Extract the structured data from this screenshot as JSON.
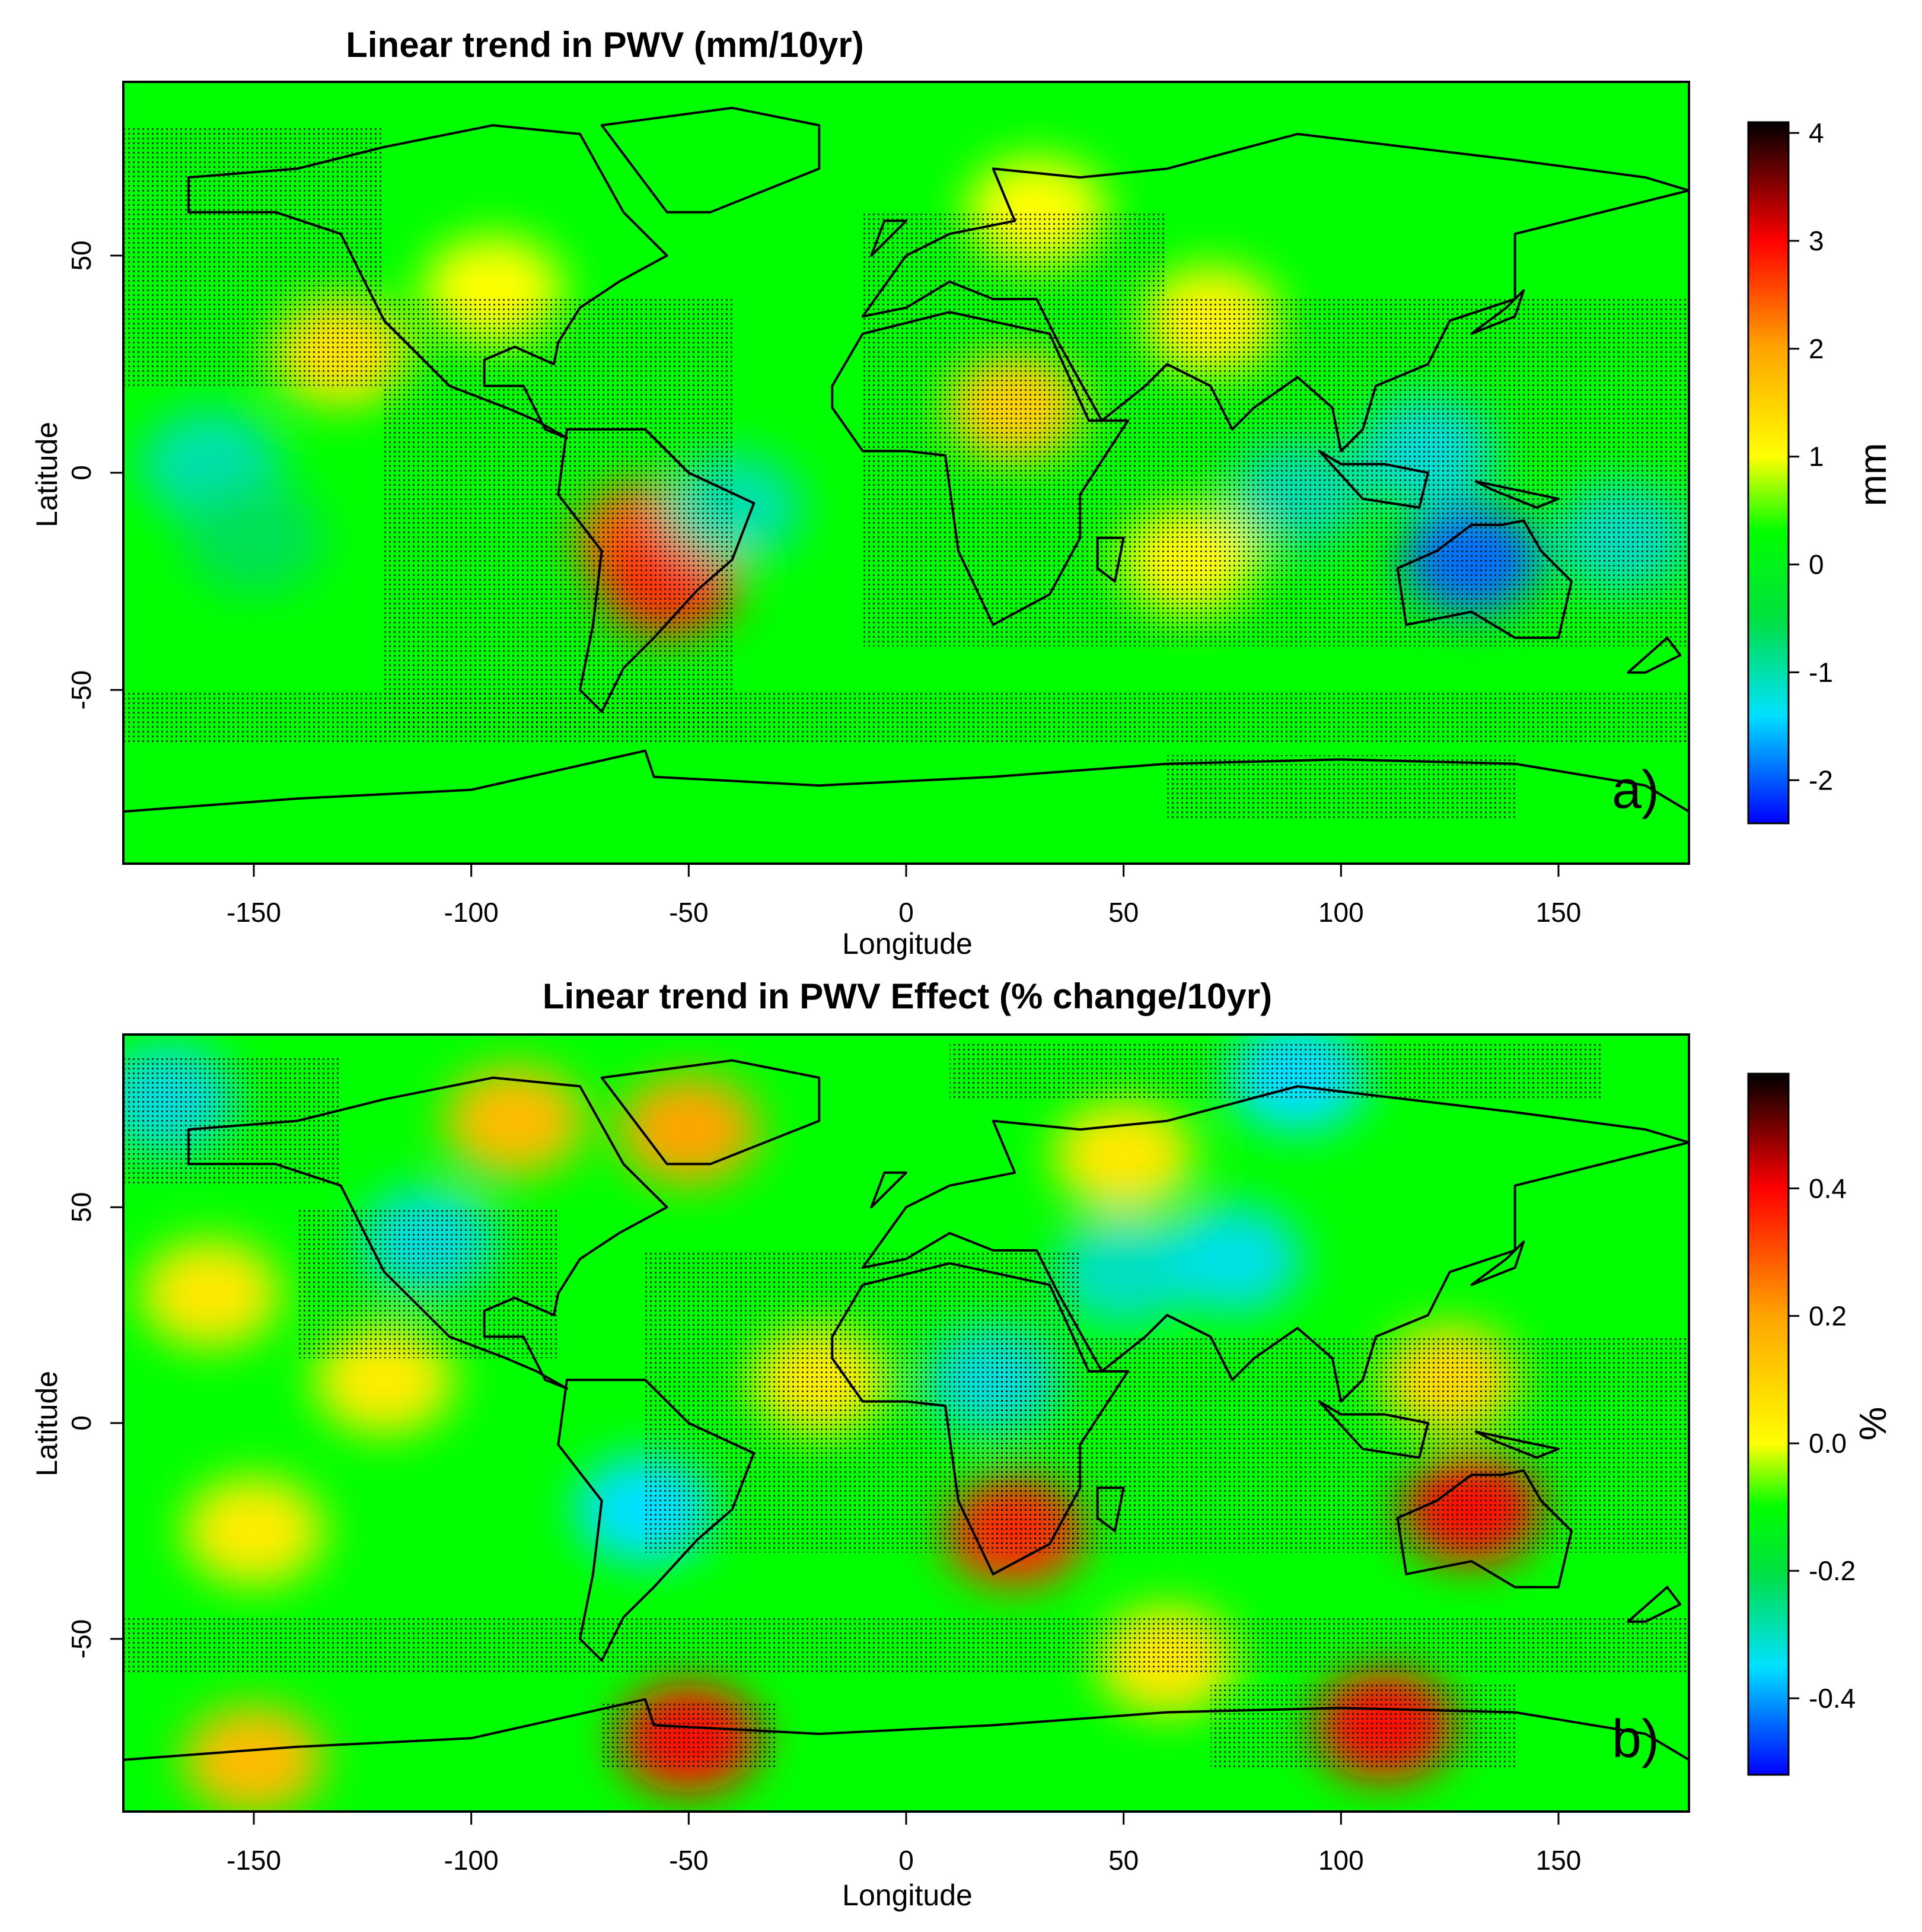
{
  "chart_data": [
    {
      "type": "heatmap",
      "title": "Linear trend in PWV (mm/10yr)",
      "xlabel": "Longitude",
      "ylabel": "Latitude",
      "xlim": [
        -180,
        180
      ],
      "ylim": [
        -90,
        90
      ],
      "x_ticks": [
        -150,
        -100,
        -50,
        0,
        50,
        100,
        150
      ],
      "y_ticks": [
        -50,
        0,
        50
      ],
      "panel_label": "a)",
      "colorbar": {
        "label": "mm",
        "range": [
          -2.4,
          4.1
        ],
        "ticks": [
          -2,
          -1,
          0,
          1,
          2,
          3,
          4
        ],
        "stops": [
          {
            "v": -2.4,
            "color": "#0000ff"
          },
          {
            "v": -1.4,
            "color": "#00e0ff"
          },
          {
            "v": -0.5,
            "color": "#00e040"
          },
          {
            "v": 0.3,
            "color": "#00ff00"
          },
          {
            "v": 1.0,
            "color": "#ffff00"
          },
          {
            "v": 2.0,
            "color": "#ffa500"
          },
          {
            "v": 3.0,
            "color": "#ff0000"
          },
          {
            "v": 4.1,
            "color": "#000000"
          }
        ]
      },
      "background_value": 0.3,
      "anomalies": [
        {
          "lon": -130,
          "lat": 28,
          "v": 1.3
        },
        {
          "lon": -95,
          "lat": 42,
          "v": 1.0
        },
        {
          "lon": -60,
          "lat": -15,
          "v": 2.4
        },
        {
          "lon": -55,
          "lat": -25,
          "v": 2.7
        },
        {
          "lon": -40,
          "lat": -8,
          "v": -1.0
        },
        {
          "lon": -160,
          "lat": 2,
          "v": -1.0
        },
        {
          "lon": -150,
          "lat": -15,
          "v": -0.6
        },
        {
          "lon": 25,
          "lat": 15,
          "v": 1.5
        },
        {
          "lon": 70,
          "lat": 35,
          "v": 1.1
        },
        {
          "lon": 65,
          "lat": -20,
          "v": 1.0
        },
        {
          "lon": 90,
          "lat": -5,
          "v": -1.0
        },
        {
          "lon": 120,
          "lat": 5,
          "v": -1.2
        },
        {
          "lon": 130,
          "lat": -20,
          "v": -1.9
        },
        {
          "lon": 165,
          "lat": -15,
          "v": -1.1
        },
        {
          "lon": 30,
          "lat": 60,
          "v": 1.0
        }
      ],
      "stipple_regions": [
        {
          "lon": [
            -180,
            -120
          ],
          "lat": [
            20,
            80
          ]
        },
        {
          "lon": [
            -120,
            -40
          ],
          "lat": [
            -60,
            40
          ]
        },
        {
          "lon": [
            -10,
            60
          ],
          "lat": [
            -40,
            60
          ]
        },
        {
          "lon": [
            60,
            180
          ],
          "lat": [
            -40,
            40
          ]
        },
        {
          "lon": [
            -180,
            180
          ],
          "lat": [
            -62,
            -50
          ]
        },
        {
          "lon": [
            60,
            140
          ],
          "lat": [
            -80,
            -65
          ]
        }
      ]
    },
    {
      "type": "heatmap",
      "title": "Linear trend in PWV Effect (% change/10yr)",
      "xlabel": "Longitude",
      "ylabel": "Latitude",
      "xlim": [
        -180,
        180
      ],
      "ylim": [
        -90,
        90
      ],
      "x_ticks": [
        -150,
        -100,
        -50,
        0,
        50,
        100,
        150
      ],
      "y_ticks": [
        -50,
        0,
        50
      ],
      "panel_label": "b)",
      "colorbar": {
        "label": "%",
        "range": [
          -0.52,
          0.58
        ],
        "ticks": [
          -0.4,
          -0.2,
          0.0,
          0.2,
          0.4
        ],
        "tick_labels": [
          "-0.4",
          "-0.2",
          "0.0",
          "0.2",
          "0.4"
        ],
        "stops": [
          {
            "v": -0.52,
            "color": "#0000ff"
          },
          {
            "v": -0.35,
            "color": "#00e0ff"
          },
          {
            "v": -0.2,
            "color": "#00e040"
          },
          {
            "v": -0.1,
            "color": "#00ff00"
          },
          {
            "v": 0.0,
            "color": "#ffff00"
          },
          {
            "v": 0.2,
            "color": "#ffa500"
          },
          {
            "v": 0.4,
            "color": "#ff0000"
          },
          {
            "v": 0.58,
            "color": "#000000"
          }
        ]
      },
      "background_value": -0.1,
      "anomalies": [
        {
          "lon": -160,
          "lat": 30,
          "v": 0.05
        },
        {
          "lon": -120,
          "lat": 10,
          "v": 0.04
        },
        {
          "lon": -150,
          "lat": -25,
          "v": 0.04
        },
        {
          "lon": -90,
          "lat": 70,
          "v": 0.15
        },
        {
          "lon": -50,
          "lat": 68,
          "v": 0.2
        },
        {
          "lon": -170,
          "lat": 75,
          "v": -0.32
        },
        {
          "lon": -110,
          "lat": 42,
          "v": -0.32
        },
        {
          "lon": -60,
          "lat": -20,
          "v": -0.35
        },
        {
          "lon": -20,
          "lat": 10,
          "v": 0.04
        },
        {
          "lon": 25,
          "lat": -25,
          "v": 0.35
        },
        {
          "lon": 20,
          "lat": 10,
          "v": -0.32
        },
        {
          "lon": 50,
          "lat": 35,
          "v": -0.3
        },
        {
          "lon": 75,
          "lat": 38,
          "v": -0.33
        },
        {
          "lon": 50,
          "lat": 62,
          "v": 0.05
        },
        {
          "lon": 90,
          "lat": 80,
          "v": -0.35
        },
        {
          "lon": 125,
          "lat": 10,
          "v": 0.08
        },
        {
          "lon": 130,
          "lat": -20,
          "v": 0.38
        },
        {
          "lon": -50,
          "lat": -73,
          "v": 0.38
        },
        {
          "lon": 110,
          "lat": -70,
          "v": 0.38
        },
        {
          "lon": -150,
          "lat": -78,
          "v": 0.15
        },
        {
          "lon": 60,
          "lat": -55,
          "v": 0.05
        }
      ],
      "stipple_regions": [
        {
          "lon": [
            -180,
            -130
          ],
          "lat": [
            55,
            85
          ]
        },
        {
          "lon": [
            10,
            160
          ],
          "lat": [
            75,
            88
          ]
        },
        {
          "lon": [
            -140,
            -80
          ],
          "lat": [
            15,
            50
          ]
        },
        {
          "lon": [
            -60,
            40
          ],
          "lat": [
            -30,
            40
          ]
        },
        {
          "lon": [
            20,
            180
          ],
          "lat": [
            -30,
            20
          ]
        },
        {
          "lon": [
            -180,
            180
          ],
          "lat": [
            -58,
            -45
          ]
        },
        {
          "lon": [
            -70,
            -30
          ],
          "lat": [
            -80,
            -65
          ]
        },
        {
          "lon": [
            70,
            140
          ],
          "lat": [
            -80,
            -60
          ]
        }
      ]
    }
  ]
}
